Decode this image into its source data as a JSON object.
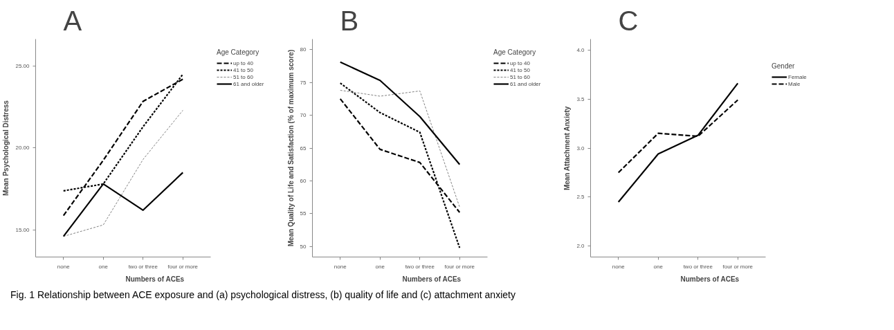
{
  "chart_data": [
    {
      "type": "line",
      "title": "A",
      "xlabel": "Numbers of ACEs",
      "ylabel": "Mean Psychological Distress",
      "legend_title": "Age Category",
      "legend": "top right",
      "grid": false,
      "categories": [
        "none",
        "one",
        "two or three",
        "four or more"
      ],
      "ylim": [
        13.34,
        26.65
      ],
      "yticks": [
        {
          "value": 15,
          "label": "15.00"
        },
        {
          "value": 20,
          "label": "20.00"
        },
        {
          "value": 25,
          "label": "25.00"
        }
      ],
      "annotations": [
        "Fig. 1 Relationship between ACE exposure and (a) psychological distress, (b) quality of life and (c) attachment anxiety"
      ],
      "series": [
        {
          "name": "up to 40",
          "color": "#000000",
          "line_style": "dashed",
          "values": [
            15.87,
            19.25,
            22.85,
            24.2
          ]
        },
        {
          "name": "41 to 50",
          "color": "#000000",
          "line_style": "dotted",
          "values": [
            17.38,
            17.8,
            21.3,
            24.5
          ]
        },
        {
          "name": "51 to 60",
          "color": "#808080",
          "line_style": "dotted",
          "values": [
            14.6,
            15.3,
            19.3,
            22.3
          ]
        },
        {
          "name": "61 and older",
          "color": "#000000",
          "line_style": "solid",
          "values": [
            14.6,
            17.8,
            16.2,
            18.5
          ]
        }
      ]
    },
    {
      "type": "line",
      "title": "B",
      "xlabel": "Numbers of ACEs",
      "ylabel": "Mean Quality of Life and Satisfaction (% of maximum score)",
      "legend_title": "Age Category",
      "legend": "top right",
      "grid": false,
      "categories": [
        "none",
        "one",
        "two or three",
        "four or more"
      ],
      "ylim": [
        48.4,
        81.6
      ],
      "yticks": [
        50,
        55,
        60,
        65,
        70,
        75,
        80
      ],
      "series": [
        {
          "name": "up to 40",
          "color": "#000000",
          "line_style": "dashed",
          "values": [
            72.5,
            64.8,
            62.8,
            55.2
          ]
        },
        {
          "name": "41 to 50",
          "color": "#000000",
          "line_style": "dotted",
          "values": [
            74.9,
            70.4,
            67.4,
            49.8
          ]
        },
        {
          "name": "51 to 60",
          "color": "#808080",
          "line_style": "dotted",
          "values": [
            73.8,
            72.9,
            73.7,
            56.0
          ]
        },
        {
          "name": "61 and older",
          "color": "#000000",
          "line_style": "solid",
          "values": [
            78.1,
            75.3,
            69.8,
            62.5
          ]
        }
      ]
    },
    {
      "type": "line",
      "title": "C",
      "xlabel": "Numbers of ACEs",
      "ylabel": "Mean Attachment Anxiety",
      "legend_title": "Gender",
      "legend": "top right",
      "grid": false,
      "categories": [
        "none",
        "one",
        "two or three",
        "four or more"
      ],
      "ylim": [
        1.89,
        4.11
      ],
      "yticks": [
        {
          "value": 2,
          "label": "2.0"
        },
        {
          "value": 2.5,
          "label": "2.5"
        },
        {
          "value": 3,
          "label": "3.0"
        },
        {
          "value": 3.5,
          "label": "3.5"
        },
        {
          "value": 4,
          "label": "4.0"
        }
      ],
      "series": [
        {
          "name": "Female",
          "color": "#000000",
          "line_style": "solid",
          "values": [
            2.45,
            2.94,
            3.13,
            3.66
          ]
        },
        {
          "name": "Male",
          "color": "#000000",
          "line_style": "dashed",
          "values": [
            2.75,
            3.15,
            3.12,
            3.49
          ]
        }
      ]
    }
  ]
}
